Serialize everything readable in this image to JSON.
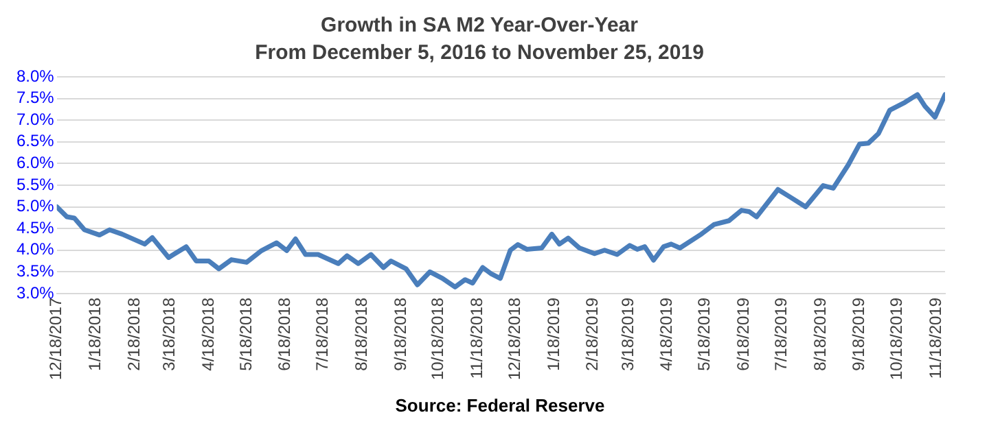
{
  "chart_data": {
    "type": "line",
    "title": "Growth in SA M2 Year-Over-Year",
    "subtitle": "From December 5, 2016 to November 25, 2019",
    "x": [
      "2017-12-18",
      "2017-12-26",
      "2018-01-01",
      "2018-01-09",
      "2018-01-21",
      "2018-01-29",
      "2018-02-08",
      "2018-02-26",
      "2018-03-04",
      "2018-03-17",
      "2018-03-31",
      "2018-04-08",
      "2018-04-18",
      "2018-04-26",
      "2018-05-06",
      "2018-05-18",
      "2018-05-30",
      "2018-06-11",
      "2018-06-19",
      "2018-06-26",
      "2018-07-04",
      "2018-07-14",
      "2018-07-30",
      "2018-08-06",
      "2018-08-15",
      "2018-08-25",
      "2018-09-04",
      "2018-09-10",
      "2018-09-22",
      "2018-10-01",
      "2018-10-11",
      "2018-10-21",
      "2018-10-31",
      "2018-11-08",
      "2018-11-14",
      "2018-11-22",
      "2018-11-29",
      "2018-12-06",
      "2018-12-14",
      "2018-12-20",
      "2018-12-27",
      "2019-01-08",
      "2019-01-16",
      "2019-01-22",
      "2019-01-29",
      "2019-02-07",
      "2019-02-19",
      "2019-02-27",
      "2019-03-09",
      "2019-03-19",
      "2019-03-25",
      "2019-03-31",
      "2019-04-07",
      "2019-04-15",
      "2019-04-21",
      "2019-04-28",
      "2019-05-15",
      "2019-05-25",
      "2019-06-06",
      "2019-06-16",
      "2019-06-22",
      "2019-06-28",
      "2019-07-15",
      "2019-07-25",
      "2019-08-06",
      "2019-08-20",
      "2019-08-28",
      "2019-09-09",
      "2019-09-18",
      "2019-09-25",
      "2019-10-03",
      "2019-10-12",
      "2019-10-24",
      "2019-11-03",
      "2019-11-09",
      "2019-11-17",
      "2019-11-25"
    ],
    "series": [
      {
        "color": "#4a7ebb",
        "values": [
          5.0,
          4.77,
          4.74,
          4.47,
          4.35,
          4.47,
          4.37,
          4.14,
          4.29,
          3.83,
          4.08,
          3.75,
          3.75,
          3.57,
          3.78,
          3.72,
          3.99,
          4.17,
          3.99,
          4.26,
          3.9,
          3.9,
          3.69,
          3.87,
          3.69,
          3.9,
          3.6,
          3.75,
          3.57,
          3.2,
          3.5,
          3.35,
          3.15,
          3.32,
          3.24,
          3.6,
          3.45,
          3.35,
          4.0,
          4.13,
          4.02,
          4.05,
          4.37,
          4.14,
          4.28,
          4.05,
          3.92,
          4.0,
          3.9,
          4.11,
          4.02,
          4.08,
          3.77,
          4.08,
          4.14,
          4.05,
          4.37,
          4.59,
          4.68,
          4.92,
          4.89,
          4.77,
          5.4,
          5.22,
          5.0,
          5.49,
          5.43,
          5.97,
          6.45,
          6.47,
          6.69,
          7.23,
          7.41,
          7.59,
          7.32,
          7.07,
          7.59
        ]
      }
    ],
    "xlim": [
      "2017-12-18",
      "2019-11-25"
    ],
    "xticks": [
      {
        "value": "2017-12-18",
        "label": "12/18/2017"
      },
      {
        "value": "2018-01-18",
        "label": "1/18/2018"
      },
      {
        "value": "2018-02-18",
        "label": "2/18/2018"
      },
      {
        "value": "2018-03-18",
        "label": "3/18/2018"
      },
      {
        "value": "2018-04-18",
        "label": "4/18/2018"
      },
      {
        "value": "2018-05-18",
        "label": "5/18/2018"
      },
      {
        "value": "2018-06-18",
        "label": "6/18/2018"
      },
      {
        "value": "2018-07-18",
        "label": "7/18/2018"
      },
      {
        "value": "2018-08-18",
        "label": "8/18/2018"
      },
      {
        "value": "2018-09-18",
        "label": "9/18/2018"
      },
      {
        "value": "2018-10-18",
        "label": "10/18/2018"
      },
      {
        "value": "2018-11-18",
        "label": "11/18/2018"
      },
      {
        "value": "2018-12-18",
        "label": "12/18/2018"
      },
      {
        "value": "2019-01-18",
        "label": "1/18/2019"
      },
      {
        "value": "2019-02-18",
        "label": "2/18/2019"
      },
      {
        "value": "2019-03-18",
        "label": "3/18/2019"
      },
      {
        "value": "2019-04-18",
        "label": "4/18/2019"
      },
      {
        "value": "2019-05-18",
        "label": "5/18/2019"
      },
      {
        "value": "2019-06-18",
        "label": "6/18/2019"
      },
      {
        "value": "2019-07-18",
        "label": "7/18/2019"
      },
      {
        "value": "2019-08-18",
        "label": "8/18/2019"
      },
      {
        "value": "2019-09-18",
        "label": "9/18/2019"
      },
      {
        "value": "2019-10-18",
        "label": "10/18/2019"
      },
      {
        "value": "2019-11-18",
        "label": "11/18/2019"
      }
    ],
    "ylim": [
      3.0,
      8.0
    ],
    "yticks": [
      {
        "value": 3.0,
        "label": "3.0%"
      },
      {
        "value": 3.5,
        "label": "3.5%"
      },
      {
        "value": 4.0,
        "label": "4.0%"
      },
      {
        "value": 4.5,
        "label": "4.5%"
      },
      {
        "value": 5.0,
        "label": "5.0%"
      },
      {
        "value": 5.5,
        "label": "5.5%"
      },
      {
        "value": 6.0,
        "label": "6.0%"
      },
      {
        "value": 6.5,
        "label": "6.5%"
      },
      {
        "value": 7.0,
        "label": "7.0%"
      },
      {
        "value": 7.5,
        "label": "7.5%"
      },
      {
        "value": 8.0,
        "label": "8.0%"
      }
    ],
    "grid": "y",
    "legend": false,
    "marker": "none",
    "line_style": "solid",
    "annotations": [
      "Source: Federal Reserve"
    ]
  }
}
